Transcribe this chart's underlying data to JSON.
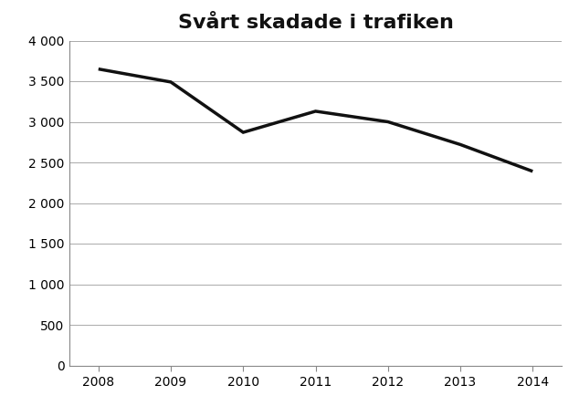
{
  "title": "Svårt skadade i trafiken",
  "years": [
    2008,
    2009,
    2010,
    2011,
    2012,
    2013,
    2014
  ],
  "values": [
    3650,
    3490,
    2870,
    3130,
    3000,
    2720,
    2390
  ],
  "ylim": [
    0,
    4000
  ],
  "yticks": [
    0,
    500,
    1000,
    1500,
    2000,
    2500,
    3000,
    3500,
    4000
  ],
  "ytick_labels": [
    "0",
    "500",
    "1 000",
    "1 500",
    "2 000",
    "2 500",
    "3 000",
    "3 500",
    "4 000"
  ],
  "xticks": [
    2008,
    2009,
    2010,
    2011,
    2012,
    2013,
    2014
  ],
  "line_color": "#111111",
  "line_width": 2.5,
  "background_color": "#ffffff",
  "title_fontsize": 16,
  "tick_fontsize": 10,
  "grid_color": "#aaaaaa",
  "grid_linewidth": 0.7,
  "spine_color": "#888888",
  "xlim_left": 2007.6,
  "xlim_right": 2014.4
}
